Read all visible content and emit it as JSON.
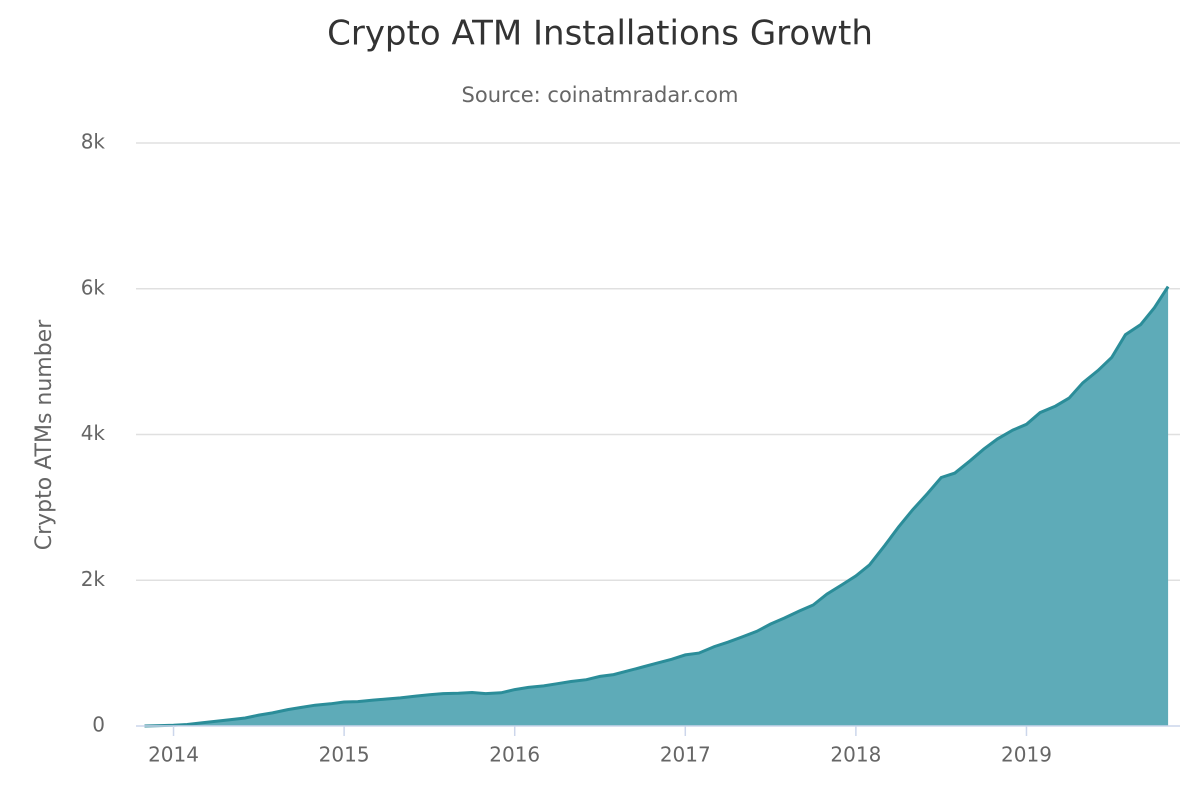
{
  "chart_data": {
    "type": "area",
    "title": "Crypto ATM Installations Growth",
    "subtitle": "Source: coinatmradar.com",
    "y_label": "Crypto ATMs number",
    "x": [
      2013.83,
      2013.92,
      2014,
      2014.08,
      2014.17,
      2014.25,
      2014.33,
      2014.42,
      2014.5,
      2014.58,
      2014.67,
      2014.75,
      2014.83,
      2014.92,
      2015,
      2015.08,
      2015.17,
      2015.25,
      2015.33,
      2015.42,
      2015.5,
      2015.58,
      2015.67,
      2015.75,
      2015.83,
      2015.92,
      2016,
      2016.08,
      2016.17,
      2016.25,
      2016.33,
      2016.42,
      2016.5,
      2016.58,
      2016.67,
      2016.75,
      2016.83,
      2016.92,
      2017,
      2017.08,
      2017.17,
      2017.25,
      2017.33,
      2017.42,
      2017.5,
      2017.58,
      2017.67,
      2017.75,
      2017.83,
      2017.92,
      2018,
      2018.08,
      2018.17,
      2018.25,
      2018.33,
      2018.42,
      2018.5,
      2018.58,
      2018.67,
      2018.75,
      2018.83,
      2018.92,
      2019,
      2019.08,
      2019.17,
      2019.25,
      2019.33,
      2019.42,
      2019.5,
      2019.58,
      2019.67,
      2019.75,
      2019.83
    ],
    "values": [
      0,
      5,
      10,
      20,
      45,
      65,
      85,
      110,
      150,
      180,
      225,
      255,
      285,
      305,
      330,
      335,
      355,
      370,
      385,
      410,
      430,
      445,
      450,
      460,
      445,
      455,
      500,
      530,
      550,
      580,
      610,
      635,
      680,
      705,
      760,
      810,
      860,
      915,
      975,
      1000,
      1090,
      1150,
      1220,
      1300,
      1400,
      1480,
      1580,
      1660,
      1810,
      1940,
      2060,
      2210,
      2480,
      2730,
      2960,
      3190,
      3410,
      3470,
      3640,
      3800,
      3940,
      4060,
      4140,
      4300,
      4390,
      4500,
      4710,
      4880,
      5060,
      5370,
      5510,
      5740,
      6030
    ],
    "color": "#2b8d99",
    "fill": "#5eabb8",
    "xlim": [
      2013.78,
      2019.9
    ],
    "xticks": [
      2014,
      2015,
      2016,
      2017,
      2018,
      2019
    ],
    "ylim": [
      0,
      8000
    ],
    "yticks": [
      0,
      {
        "value": 2000,
        "label": "2k"
      },
      {
        "value": 4000,
        "label": "4k"
      },
      {
        "value": 6000,
        "label": "6k"
      },
      {
        "value": 8000,
        "label": "8k"
      }
    ],
    "grid": true
  }
}
